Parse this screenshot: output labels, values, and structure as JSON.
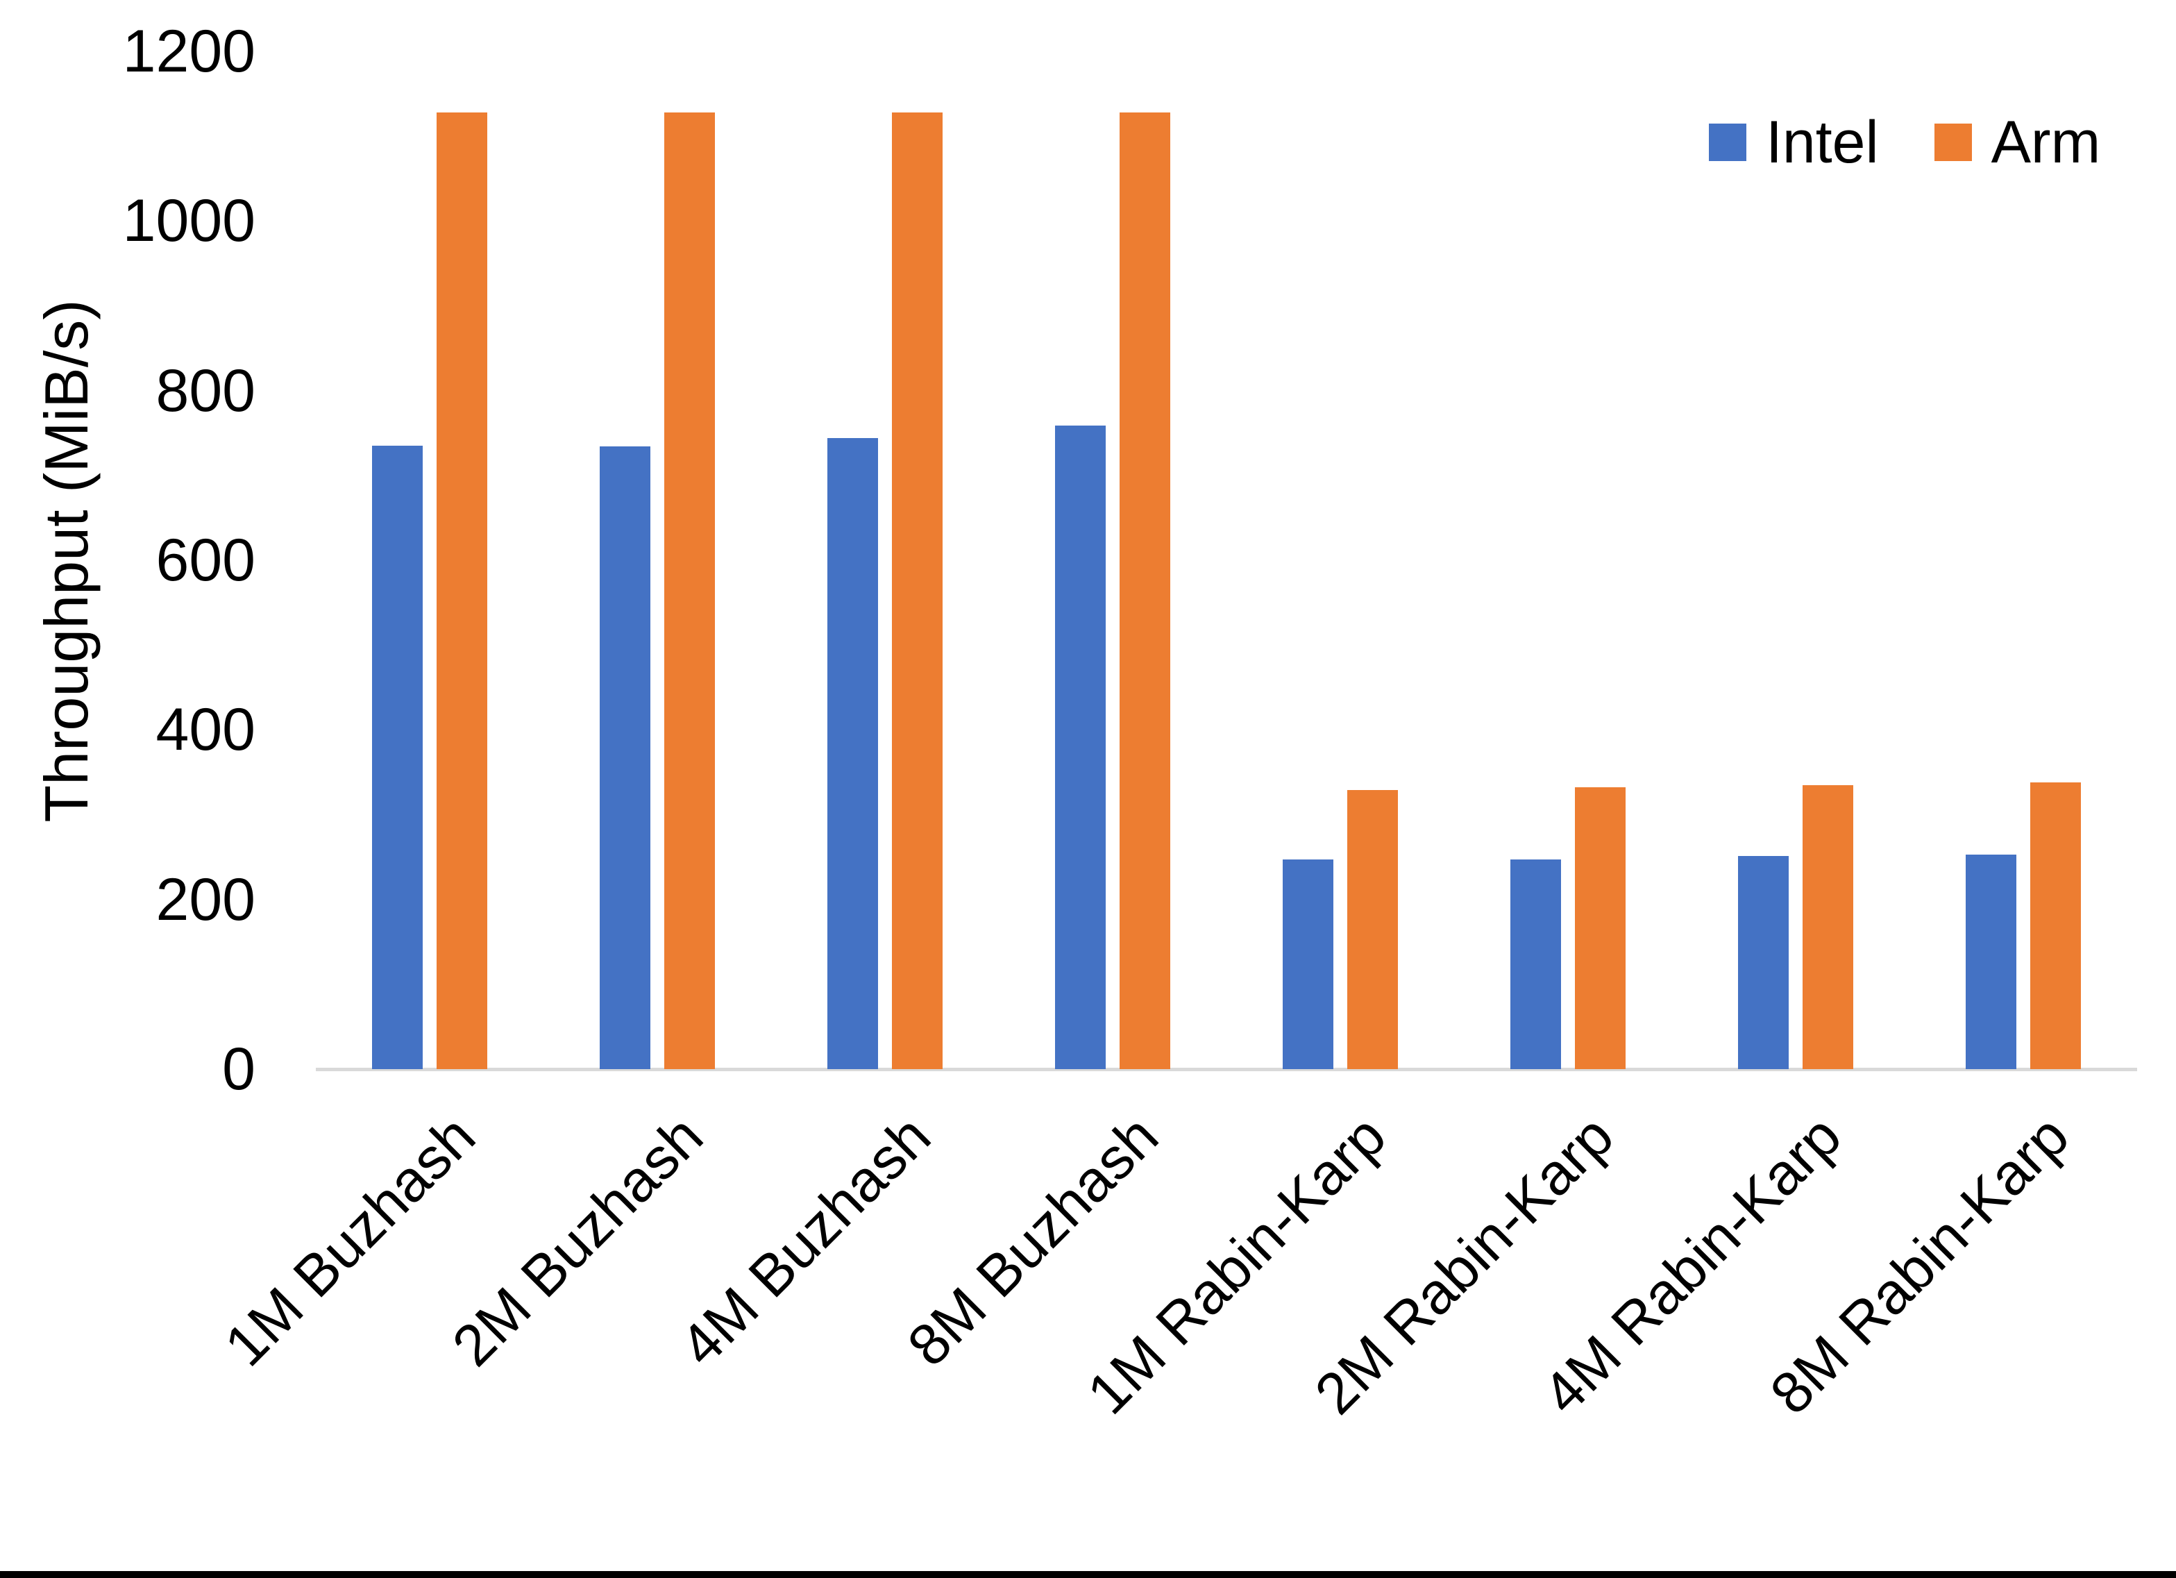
{
  "chart_data": {
    "type": "bar",
    "title": "",
    "ylabel": "Throughput (MiB/s)",
    "xlabel": "",
    "categories": [
      "1M Buzhash",
      "2M Buzhash",
      "4M Buzhash",
      "8M Buzhash",
      "1M Rabin-Karp",
      "2M Rabin-Karp",
      "4M Rabin-Karp",
      "8M Rabin-Karp"
    ],
    "series": [
      {
        "name": "Intel",
        "color": "#4472C4",
        "values": [
          735,
          734,
          744,
          759,
          247,
          247,
          251,
          253
        ]
      },
      {
        "name": "Arm",
        "color": "#ED7D31",
        "values": [
          1128,
          1128,
          1128,
          1128,
          329,
          332,
          335,
          338
        ]
      }
    ],
    "ylim": [
      0,
      1200
    ],
    "yticks": [
      0,
      200,
      400,
      600,
      800,
      1000,
      1200
    ],
    "grid": false,
    "legend_position": "top-right",
    "axis_line_color": "#D9D9D9",
    "text_color": "#000000",
    "background_color": "#FFFFFF"
  }
}
